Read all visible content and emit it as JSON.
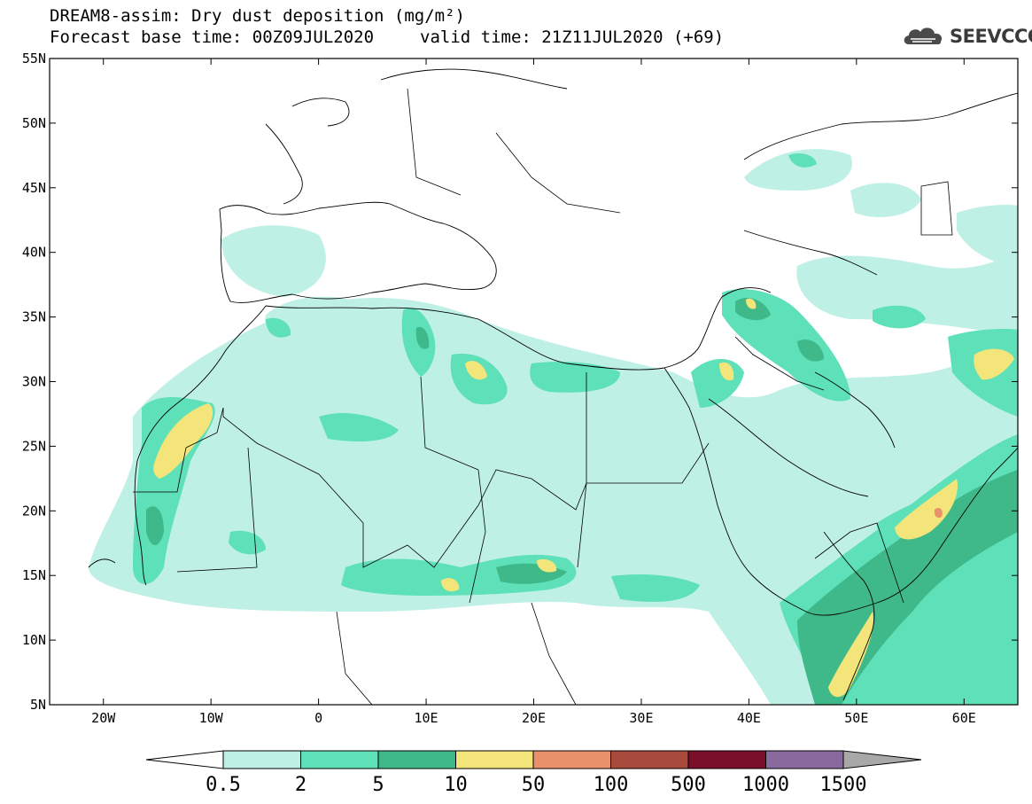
{
  "header": {
    "line1": "DREAM8-assim: Dry dust deposition (mg/m²)",
    "base_time": "Forecast base time: 00Z09JUL2020",
    "valid_time": "valid time: 21Z11JUL2020 (+69)"
  },
  "logo": {
    "text": "SEEVCCC",
    "icon": "cloud-icon"
  },
  "map": {
    "lat_labels": [
      "55N",
      "50N",
      "45N",
      "40N",
      "35N",
      "30N",
      "25N",
      "20N",
      "15N",
      "10N",
      "5N"
    ],
    "lon_labels": [
      "20W",
      "10W",
      "0",
      "10E",
      "20E",
      "30E",
      "40E",
      "50E",
      "60E"
    ],
    "lat_range": [
      5,
      55
    ],
    "lon_range": [
      -25,
      65
    ]
  },
  "colorbar": {
    "labels": [
      "0.5",
      "2",
      "5",
      "10",
      "50",
      "100",
      "500",
      "1000",
      "1500"
    ],
    "colors": [
      "#bff0e6",
      "#5ee0b8",
      "#3fb98a",
      "#f3e57a",
      "#e8916a",
      "#a84a3c",
      "#7a0f2a",
      "#8a6a9e"
    ],
    "under_color": "#ffffff",
    "over_color": "#a8a8a8"
  }
}
